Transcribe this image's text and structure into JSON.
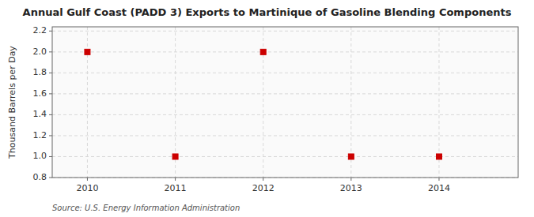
{
  "chart_data": {
    "type": "scatter",
    "title": "Annual Gulf Coast (PADD 3) Exports to Martinique of Gasoline Blending Components",
    "ylabel": "Thousand Barrels per Day",
    "source": "Source: U.S. Energy Information Administration",
    "x": [
      2010,
      2011,
      2012,
      2013,
      2014
    ],
    "y": [
      2.0,
      1.0,
      2.0,
      1.0,
      1.0
    ],
    "xlim": [
      2009.6,
      2014.9
    ],
    "ylim": [
      0.8,
      2.24
    ],
    "xticks": [
      2010,
      2011,
      2012,
      2013,
      2014
    ],
    "yticks": [
      0.8,
      {
        "value": 1.0,
        "label": "1.0"
      },
      1.2,
      1.4,
      1.6,
      1.8,
      {
        "value": 2.0,
        "label": "2.0"
      },
      2.2
    ],
    "color": "#cc0000",
    "marker": "square",
    "grid": true
  }
}
